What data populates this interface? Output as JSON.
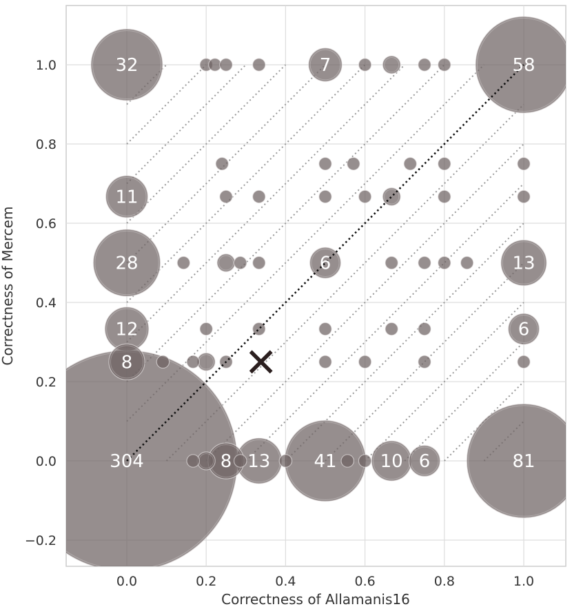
{
  "chart_data": {
    "type": "scatter",
    "xlabel": "Correctness of Allamanis16",
    "ylabel": "Correctness of Mercem",
    "xlim": [
      -0.15,
      1.11
    ],
    "ylim": [
      -0.265,
      1.15
    ],
    "x_ticks": [
      "0.0",
      "0.2",
      "0.4",
      "0.6",
      "0.8",
      "1.0"
    ],
    "y_ticks": [
      "−0.2",
      "0.0",
      "0.2",
      "0.4",
      "0.6",
      "0.8",
      "1.0"
    ],
    "x_tick_values": [
      0.0,
      0.2,
      0.4,
      0.6,
      0.8,
      1.0
    ],
    "y_tick_values": [
      -0.2,
      0.0,
      0.2,
      0.4,
      0.6,
      0.8,
      1.0
    ],
    "grid": true,
    "bubble_color": "#6e6363",
    "points": [
      {
        "x": 0.0,
        "y": 1.0,
        "count": 32,
        "label": "32"
      },
      {
        "x": 0.2,
        "y": 1.0,
        "count": 1
      },
      {
        "x": 0.222,
        "y": 1.0,
        "count": 1
      },
      {
        "x": 0.25,
        "y": 1.0,
        "count": 1
      },
      {
        "x": 0.333,
        "y": 1.0,
        "count": 1
      },
      {
        "x": 0.5,
        "y": 1.0,
        "count": 7,
        "label": "7"
      },
      {
        "x": 0.6,
        "y": 1.0,
        "count": 1
      },
      {
        "x": 0.667,
        "y": 1.0,
        "count": 2
      },
      {
        "x": 0.75,
        "y": 1.0,
        "count": 1
      },
      {
        "x": 0.8,
        "y": 1.0,
        "count": 1
      },
      {
        "x": 1.0,
        "y": 1.0,
        "count": 58,
        "label": "58"
      },
      {
        "x": 0.24,
        "y": 0.75,
        "count": 1
      },
      {
        "x": 0.5,
        "y": 0.75,
        "count": 1
      },
      {
        "x": 0.571,
        "y": 0.75,
        "count": 1
      },
      {
        "x": 0.714,
        "y": 0.75,
        "count": 1
      },
      {
        "x": 0.8,
        "y": 0.75,
        "count": 1
      },
      {
        "x": 1.0,
        "y": 0.75,
        "count": 1
      },
      {
        "x": 0.0,
        "y": 0.667,
        "count": 11,
        "label": "11"
      },
      {
        "x": 0.25,
        "y": 0.667,
        "count": 1
      },
      {
        "x": 0.333,
        "y": 0.667,
        "count": 1
      },
      {
        "x": 0.5,
        "y": 0.667,
        "count": 1
      },
      {
        "x": 0.6,
        "y": 0.667,
        "count": 1
      },
      {
        "x": 0.667,
        "y": 0.667,
        "count": 2
      },
      {
        "x": 0.8,
        "y": 0.667,
        "count": 1
      },
      {
        "x": 1.0,
        "y": 0.667,
        "count": 1
      },
      {
        "x": 0.0,
        "y": 0.5,
        "count": 28,
        "label": "28"
      },
      {
        "x": 0.143,
        "y": 0.5,
        "count": 1
      },
      {
        "x": 0.25,
        "y": 0.5,
        "count": 2
      },
      {
        "x": 0.286,
        "y": 0.5,
        "count": 1
      },
      {
        "x": 0.333,
        "y": 0.5,
        "count": 1
      },
      {
        "x": 0.5,
        "y": 0.5,
        "count": 6,
        "label": "6"
      },
      {
        "x": 0.667,
        "y": 0.5,
        "count": 1
      },
      {
        "x": 0.75,
        "y": 0.5,
        "count": 1
      },
      {
        "x": 0.8,
        "y": 0.5,
        "count": 1
      },
      {
        "x": 0.857,
        "y": 0.5,
        "count": 1
      },
      {
        "x": 1.0,
        "y": 0.5,
        "count": 13,
        "label": "13"
      },
      {
        "x": 0.0,
        "y": 0.333,
        "count": 12,
        "label": "12"
      },
      {
        "x": 0.2,
        "y": 0.333,
        "count": 1
      },
      {
        "x": 0.333,
        "y": 0.333,
        "count": 1
      },
      {
        "x": 0.5,
        "y": 0.333,
        "count": 1
      },
      {
        "x": 0.667,
        "y": 0.333,
        "count": 1
      },
      {
        "x": 0.75,
        "y": 0.333,
        "count": 1
      },
      {
        "x": 1.0,
        "y": 0.333,
        "count": 6,
        "label": "6"
      },
      {
        "x": 0.0,
        "y": 0.25,
        "count": 8,
        "label": "8"
      },
      {
        "x": 0.091,
        "y": 0.25,
        "count": 1
      },
      {
        "x": 0.167,
        "y": 0.25,
        "count": 1
      },
      {
        "x": 0.2,
        "y": 0.25,
        "count": 2
      },
      {
        "x": 0.25,
        "y": 0.25,
        "count": 1
      },
      {
        "x": 0.5,
        "y": 0.25,
        "count": 1
      },
      {
        "x": 0.6,
        "y": 0.25,
        "count": 1
      },
      {
        "x": 0.75,
        "y": 0.25,
        "count": 1
      },
      {
        "x": 1.0,
        "y": 0.25,
        "count": 1
      },
      {
        "x": 0.0,
        "y": 0.0,
        "count": 304,
        "label": "304"
      },
      {
        "x": 0.167,
        "y": 0.0,
        "count": 1
      },
      {
        "x": 0.2,
        "y": 0.0,
        "count": 2
      },
      {
        "x": 0.25,
        "y": 0.0,
        "count": 8,
        "label": "8"
      },
      {
        "x": 0.286,
        "y": 0.0,
        "count": 1
      },
      {
        "x": 0.333,
        "y": 0.0,
        "count": 13,
        "label": "13"
      },
      {
        "x": 0.4,
        "y": 0.0,
        "count": 1
      },
      {
        "x": 0.5,
        "y": 0.0,
        "count": 41,
        "label": "41"
      },
      {
        "x": 0.556,
        "y": 0.0,
        "count": 1
      },
      {
        "x": 0.6,
        "y": 0.0,
        "count": 1
      },
      {
        "x": 0.667,
        "y": 0.0,
        "count": 10,
        "label": "10"
      },
      {
        "x": 0.75,
        "y": 0.0,
        "count": 6,
        "label": "6"
      },
      {
        "x": 1.0,
        "y": 0.0,
        "count": 81,
        "label": "81"
      }
    ],
    "marker": {
      "x": 0.338,
      "y": 0.25,
      "symbol": "x",
      "color": "#2b1f1f"
    },
    "reference_line": {
      "from": [
        0.0,
        0.0
      ],
      "to": [
        1.0,
        1.0
      ],
      "style": "dotted",
      "color": "#111111"
    },
    "guide_lines": {
      "style": "dotted",
      "color": "#999999"
    }
  }
}
